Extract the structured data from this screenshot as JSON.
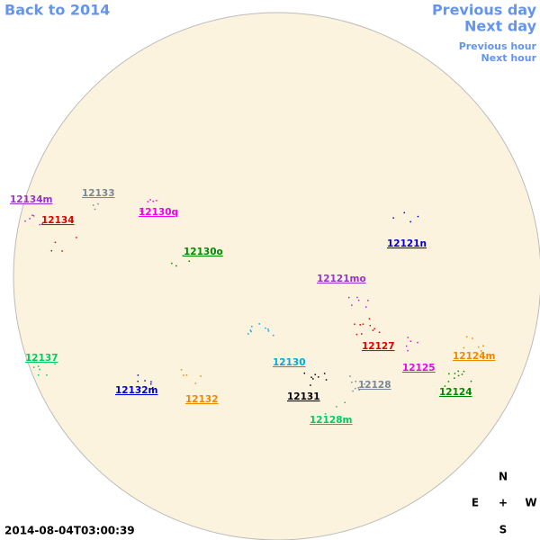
{
  "navigation": {
    "back": "Back to 2014",
    "previous_day": "Previous day",
    "next_day": "Next day",
    "previous_hour": "Previous hour",
    "next_hour": "Next hour"
  },
  "regions": [
    {
      "label": "12134m",
      "color": "#9933cc"
    },
    {
      "label": "12133",
      "color": "#778899"
    },
    {
      "label": "12134",
      "color": "#dd0000"
    },
    {
      "label": "12130q",
      "color": "#ee00ee"
    },
    {
      "label": "12130o",
      "color": "#008800"
    },
    {
      "label": "12121n",
      "color": "#0000cc"
    },
    {
      "label": "12121mo",
      "color": "#9933cc"
    },
    {
      "label": "12127",
      "color": "#dd0000"
    },
    {
      "label": "12124m",
      "color": "#ee8800"
    },
    {
      "label": "12137",
      "color": "#00cc66"
    },
    {
      "label": "12130",
      "color": "#00aadd"
    },
    {
      "label": "12125",
      "color": "#ee00ee"
    },
    {
      "label": "12132m",
      "color": "#0000cc"
    },
    {
      "label": "12128",
      "color": "#778899"
    },
    {
      "label": "12124",
      "color": "#008800"
    },
    {
      "label": "12131",
      "color": "#000000"
    },
    {
      "label": "12132",
      "color": "#ee8800"
    },
    {
      "label": "12128m",
      "color": "#00cc66"
    }
  ],
  "compass": {
    "north": "N",
    "east": "E",
    "center": "+",
    "west": "W",
    "south": "S"
  },
  "timestamp": "2014-08-04T03:00:39"
}
